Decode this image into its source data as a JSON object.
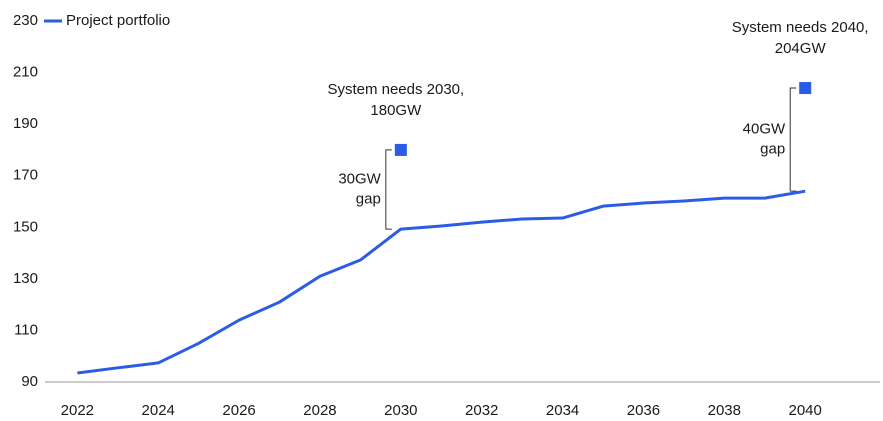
{
  "chart_data": {
    "type": "line",
    "x": [
      2022,
      2023,
      2024,
      2025,
      2026,
      2027,
      2028,
      2029,
      2030,
      2031,
      2032,
      2033,
      2034,
      2035,
      2036,
      2037,
      2038,
      2039,
      2040
    ],
    "series": [
      {
        "name": "Project portfolio",
        "color": "#2b5ce6",
        "values": [
          93.5,
          95.5,
          97.4,
          105,
          114,
          121,
          131,
          137.3,
          149.3,
          150.5,
          152,
          153.2,
          153.6,
          158.2,
          159.4,
          160.2,
          161.3,
          161.3,
          164
        ]
      }
    ],
    "targets": [
      {
        "x": 2030,
        "value": 180,
        "label": [
          "System needs 2030,",
          "180GW"
        ],
        "gap": [
          "30GW",
          "gap"
        ]
      },
      {
        "x": 2040,
        "value": 204,
        "label": [
          "System needs 2040,",
          "204GW"
        ],
        "gap": [
          "40GW",
          "gap"
        ]
      }
    ],
    "target_color": "#2b5ce6",
    "xlim": [
      2021.2,
      2041.85
    ],
    "xticks": [
      2022,
      2024,
      2026,
      2028,
      2030,
      2032,
      2034,
      2036,
      2038,
      2040
    ],
    "ylim": [
      90,
      230
    ],
    "yticks": [
      90,
      110,
      130,
      150,
      170,
      190,
      210,
      230
    ],
    "legend": "top-left",
    "grid": false
  }
}
